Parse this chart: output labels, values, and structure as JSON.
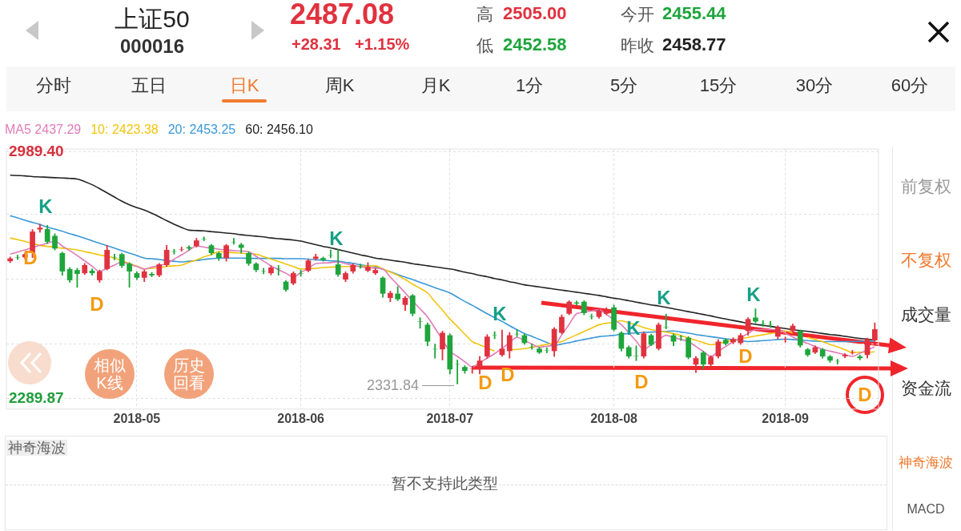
{
  "chart_data": {
    "type": "candlestick",
    "title": "上证50",
    "subtitle": "000016",
    "categories": [
      null,
      null,
      null,
      null,
      null,
      null,
      null,
      null,
      null,
      null,
      null,
      null,
      null,
      null,
      null,
      null,
      null,
      "2018-05",
      null,
      null,
      null,
      null,
      null,
      null,
      null,
      null,
      null,
      null,
      null,
      null,
      null,
      null,
      null,
      null,
      null,
      null,
      null,
      null,
      null,
      "2018-06",
      null,
      null,
      null,
      null,
      null,
      null,
      null,
      null,
      null,
      null,
      null,
      null,
      null,
      null,
      null,
      null,
      null,
      null,
      null,
      "2018-07",
      null,
      null,
      null,
      null,
      null,
      null,
      null,
      null,
      null,
      null,
      null,
      null,
      null,
      null,
      null,
      null,
      null,
      null,
      null,
      null,
      null,
      "2018-08",
      null,
      null,
      null,
      null,
      null,
      null,
      null,
      null,
      null,
      null,
      null,
      null,
      null,
      null,
      null,
      null,
      null,
      null,
      null,
      null,
      null,
      null,
      "2018-09",
      null,
      null,
      null,
      null,
      null,
      null,
      null,
      null,
      null,
      null,
      null,
      null
    ],
    "ohlc": [
      [
        2680,
        2692,
        2676,
        2688
      ],
      [
        2691,
        2697,
        2685,
        2690
      ],
      [
        2691,
        2704,
        2686,
        2700
      ],
      [
        2703,
        2770,
        2690,
        2764
      ],
      [
        2770,
        2785,
        2762,
        2775
      ],
      [
        2771,
        2782,
        2730,
        2735
      ],
      [
        2752,
        2758,
        2712,
        2716
      ],
      [
        2703,
        2706,
        2640,
        2651
      ],
      [
        2658,
        2662,
        2620,
        2626
      ],
      [
        2655,
        2660,
        2606,
        2644
      ],
      [
        2646,
        2674,
        2642,
        2669
      ],
      [
        2653,
        2658,
        2640,
        2646
      ],
      [
        2626,
        2655,
        2620,
        2651
      ],
      [
        2658,
        2725,
        2655,
        2712
      ],
      [
        2692,
        2700,
        2684,
        2691
      ],
      [
        2700,
        2703,
        2662,
        2667
      ],
      [
        2673,
        2676,
        2606,
        2651
      ],
      [
        2646,
        2650,
        2628,
        2633
      ],
      [
        2633,
        2655,
        2622,
        2651
      ],
      [
        2644,
        2648,
        2636,
        2640
      ],
      [
        2640,
        2674,
        2636,
        2671
      ],
      [
        2669,
        2725,
        2665,
        2712
      ],
      [
        2708,
        2714,
        2700,
        2707
      ],
      [
        2713,
        2720,
        2708,
        2714
      ],
      [
        2720,
        2724,
        2711,
        2716
      ],
      [
        2723,
        2745,
        2720,
        2739
      ],
      [
        2744,
        2749,
        2738,
        2743
      ],
      [
        2725,
        2728,
        2698,
        2703
      ],
      [
        2703,
        2706,
        2682,
        2689
      ],
      [
        2689,
        2728,
        2680,
        2725
      ],
      [
        2735,
        2745,
        2728,
        2734
      ],
      [
        2727,
        2731,
        2703,
        2718
      ],
      [
        2703,
        2707,
        2668,
        2673
      ],
      [
        2673,
        2676,
        2650,
        2655
      ],
      [
        2652,
        2660,
        2644,
        2651
      ],
      [
        2646,
        2667,
        2641,
        2662
      ],
      [
        2659,
        2668,
        2640,
        2658
      ],
      [
        2622,
        2625,
        2595,
        2599
      ],
      [
        2617,
        2650,
        2613,
        2646
      ],
      [
        2645,
        2655,
        2637,
        2644
      ],
      [
        2653,
        2686,
        2650,
        2682
      ],
      [
        2687,
        2700,
        2683,
        2693
      ],
      [
        2689,
        2692,
        2680,
        2684
      ],
      [
        2697,
        2712,
        2690,
        2696
      ],
      [
        2671,
        2714,
        2637,
        2642
      ],
      [
        2628,
        2650,
        2622,
        2646
      ],
      [
        2651,
        2673,
        2646,
        2669
      ],
      [
        2666,
        2672,
        2660,
        2665
      ],
      [
        2653,
        2676,
        2650,
        2664
      ],
      [
        2646,
        2660,
        2642,
        2655
      ],
      [
        2633,
        2636,
        2578,
        2588
      ],
      [
        2576,
        2595,
        2565,
        2590
      ],
      [
        2588,
        2608,
        2568,
        2572
      ],
      [
        2556,
        2580,
        2540,
        2576
      ],
      [
        2583,
        2586,
        2525,
        2531
      ],
      [
        2510,
        2520,
        2490,
        2509
      ],
      [
        2500,
        2505,
        2440,
        2452
      ],
      [
        2431,
        2445,
        2405,
        2430
      ],
      [
        2430,
        2482,
        2400,
        2477
      ],
      [
        2470,
        2474,
        2360,
        2373
      ],
      [
        2388,
        2400,
        2331.84,
        2387
      ],
      [
        2380,
        2384,
        2362,
        2369
      ],
      [
        2375,
        2382,
        2362,
        2376
      ],
      [
        2380,
        2410,
        2360,
        2398
      ],
      [
        2410,
        2472,
        2405,
        2466
      ],
      [
        2471,
        2480,
        2460,
        2470
      ],
      [
        2414,
        2485,
        2410,
        2432
      ],
      [
        2425,
        2478,
        2405,
        2470
      ],
      [
        2474,
        2485,
        2466,
        2473
      ],
      [
        2470,
        2474,
        2444,
        2448
      ],
      [
        2437,
        2445,
        2430,
        2436
      ],
      [
        2432,
        2436,
        2418,
        2421
      ],
      [
        2428,
        2435,
        2420,
        2427
      ],
      [
        2425,
        2492,
        2410,
        2488
      ],
      [
        2477,
        2528,
        2474,
        2522
      ],
      [
        2531,
        2568,
        2528,
        2565
      ],
      [
        2563,
        2567,
        2555,
        2560
      ],
      [
        2565,
        2568,
        2528,
        2533
      ],
      [
        2523,
        2530,
        2516,
        2522
      ],
      [
        2522,
        2545,
        2518,
        2538
      ],
      [
        2531,
        2548,
        2528,
        2536
      ],
      [
        2549,
        2556,
        2482,
        2486
      ],
      [
        2477,
        2480,
        2425,
        2432
      ],
      [
        2436,
        2440,
        2405,
        2410
      ],
      [
        2411,
        2440,
        2398,
        2410
      ],
      [
        2410,
        2480,
        2405,
        2475
      ],
      [
        2470,
        2473,
        2440,
        2443
      ],
      [
        2432,
        2505,
        2428,
        2500
      ],
      [
        2494,
        2530,
        2488,
        2493
      ],
      [
        2470,
        2474,
        2440,
        2452
      ],
      [
        2466,
        2470,
        2455,
        2465
      ],
      [
        2463,
        2466,
        2403,
        2407
      ],
      [
        2387,
        2410,
        2364,
        2405
      ],
      [
        2421,
        2425,
        2375,
        2387
      ],
      [
        2387,
        2412,
        2378,
        2409
      ],
      [
        2410,
        2458,
        2405,
        2452
      ],
      [
        2457,
        2460,
        2442,
        2446
      ],
      [
        2450,
        2463,
        2446,
        2459
      ],
      [
        2448,
        2475,
        2444,
        2470
      ],
      [
        2482,
        2520,
        2470,
        2516
      ],
      [
        2520,
        2545,
        2505,
        2509
      ],
      [
        2503,
        2512,
        2495,
        2502
      ],
      [
        2501,
        2510,
        2492,
        2500
      ],
      [
        2466,
        2497,
        2460,
        2493
      ],
      [
        2459,
        2465,
        2450,
        2460
      ],
      [
        2482,
        2502,
        2478,
        2497
      ],
      [
        2482,
        2485,
        2436,
        2441
      ],
      [
        2430,
        2433,
        2410,
        2414
      ],
      [
        2421,
        2440,
        2418,
        2436
      ],
      [
        2430,
        2433,
        2405,
        2410
      ],
      [
        2410,
        2413,
        2393,
        2398
      ],
      [
        2397,
        2402,
        2388,
        2396
      ],
      [
        2410,
        2418,
        2406,
        2414
      ],
      [
        2420,
        2427,
        2416,
        2421
      ],
      [
        2410,
        2414,
        2400,
        2405
      ],
      [
        2414,
        2462,
        2405,
        2458.77
      ],
      [
        2455.44,
        2505.0,
        2452.58,
        2487.08
      ]
    ],
    "series": [
      {
        "type": "line",
        "name": "MA5 2437.29",
        "color": "#e07bb8",
        "values": [
          2700,
          2706,
          2712,
          2719,
          2725,
          2731,
          2737,
          2723,
          2710,
          2696,
          2681,
          2666,
          2651,
          2660,
          2669,
          2678,
          2671,
          2665,
          2658,
          2663,
          2668,
          2673,
          2686,
          2698,
          2711,
          2723,
          2720,
          2717,
          2714,
          2712,
          2710,
          2709,
          2707,
          2694,
          2680,
          2667,
          2656,
          2646,
          2635,
          2648,
          2660,
          2673,
          2675,
          2676,
          2678,
          2673,
          2669,
          2664,
          2662,
          2660,
          2658,
          2635,
          2613,
          2590,
          2567,
          2545,
          2522,
          2490,
          2457,
          2425,
          2410,
          2395,
          2380,
          2393,
          2405,
          2418,
          2433,
          2449,
          2464,
          2455,
          2445,
          2436,
          2439,
          2441,
          2471,
          2501,
          2531,
          2535,
          2539,
          2543,
          2529,
          2514,
          2500,
          2477,
          2453,
          2430,
          2443,
          2457,
          2470,
          2464,
          2458,
          2452,
          2438,
          2424,
          2410,
          2424,
          2438,
          2452,
          2463,
          2475,
          2486,
          2486,
          2486,
          2486,
          2476,
          2465,
          2455,
          2447,
          2438,
          2430,
          2425,
          2420,
          2415,
          2410,
          2419,
          2428,
          2437
        ]
      },
      {
        "type": "line",
        "name": "10: 2423.38",
        "color": "#f2c40c",
        "values": [
          2746,
          2741,
          2736,
          2730,
          2725,
          2722,
          2720,
          2717,
          2715,
          2712,
          2707,
          2703,
          2698,
          2694,
          2689,
          2681,
          2674,
          2666,
          2658,
          2660,
          2662,
          2665,
          2667,
          2669,
          2677,
          2684,
          2692,
          2699,
          2707,
          2706,
          2704,
          2703,
          2701,
          2700,
          2693,
          2686,
          2679,
          2672,
          2665,
          2658,
          2659,
          2660,
          2662,
          2663,
          2664,
          2665,
          2665,
          2666,
          2666,
          2667,
          2658,
          2649,
          2640,
          2628,
          2615,
          2603,
          2590,
          2565,
          2541,
          2516,
          2495,
          2473,
          2452,
          2443,
          2434,
          2425,
          null,
          2429,
          2430,
          2432,
          2436,
          2440,
          2444,
          2448,
          2452,
          2462,
          2471,
          2481,
          2490,
          2500,
          2504,
          2507,
          2511,
          2505,
          2499,
          2492,
          2486,
          2482,
          2479,
          2475,
          2469,
          2462,
          2456,
          2449,
          2443,
          2447,
          2451,
          2456,
          2460,
          2464,
          2468,
          2471,
          2475,
          2478,
          2482,
          2476,
          null,
          2464,
          2458,
          2452,
          2444,
          2437,
          2429,
          2421,
          2422,
          2422,
          2423
        ]
      },
      {
        "type": "line",
        "name": "20: 2453.25",
        "color": "#3a98d8",
        "values": [
          2809,
          2803,
          2796,
          2790,
          2784,
          2777,
          2771,
          2765,
          2758,
          2752,
          2745,
          2738,
          2731,
          2724,
          2717,
          2710,
          2703,
          2696,
          2689,
          2687,
          2685,
          2682,
          2680,
          2678,
          2680,
          2682,
          2685,
          2687,
          2689,
          2689,
          2689,
          2689,
          2688,
          2688,
          2688,
          2688,
          2688,
          2687,
          2687,
          2687,
          2686,
          2684,
          2683,
          2681,
          2680,
          2677,
          2674,
          2670,
          2667,
          2664,
          2657,
          2650,
          2642,
          2635,
          2628,
          2620,
          2613,
          2605,
          2598,
          2590,
          2578,
          2566,
          2555,
          2543,
          2531,
          2520,
          2509,
          2497,
          2486,
          2475,
          2467,
          2458,
          2450,
          2441,
          2445,
          2449,
          2454,
          2458,
          2462,
          2466,
          2468,
          2470,
          2473,
          2475,
          2477,
          2478,
          2479,
          2480,
          2481,
          2482,
          2479,
          2476,
          2472,
          2469,
          2466,
          2463,
          2460,
          2458,
          2455,
          2452,
          2453,
          2455,
          2456,
          2458,
          2459,
          2458,
          2456,
          2455,
          2453,
          2452,
          2452,
          2452,
          2452,
          2452,
          2453,
          2453,
          2453
        ]
      },
      {
        "type": "line",
        "name": "60: 2456.10",
        "color": "#222222",
        "values": [
          2924,
          2923,
          2922,
          2920,
          2919,
          2918,
          2917,
          2916,
          2915,
          2913,
          2906,
          2897,
          2886,
          2874,
          2862,
          2850,
          2840,
          2832,
          2825,
          2816,
          2806,
          2795,
          2785,
          2776,
          2768,
          2767,
          2766,
          2764,
          2762,
          2760,
          2758,
          2755,
          2753,
          2751,
          2749,
          2746,
          2744,
          2742,
          2740,
          2737,
          2732,
          2727,
          2722,
          2718,
          2713,
          2708,
          2703,
          2698,
          2694,
          2689,
          2686,
          2683,
          2680,
          2677,
          2673,
          2670,
          2667,
          2664,
          2661,
          2658,
          2654,
          2649,
          2645,
          2640,
          2636,
          2631,
          2627,
          2622,
          2618,
          2613,
          2610,
          2607,
          2604,
          2601,
          2598,
          2595,
          2592,
          2589,
          2586,
          2583,
          2579,
          2575,
          2572,
          2568,
          2564,
          2560,
          2556,
          2553,
          2549,
          2545,
          2541,
          2537,
          2533,
          2529,
          2525,
          2520,
          2516,
          2512,
          2508,
          2504,
          2501,
          2498,
          2495,
          2492,
          2489,
          2486,
          2483,
          2481,
          2478,
          2475,
          2472,
          2470,
          2467,
          2464,
          2461,
          2459,
          2456
        ]
      }
    ],
    "ylim": [
      2260.5,
      2998.4
    ],
    "yticks": [
      2289.87,
      {
        "value": 2444.97,
        "label": null
      },
      {
        "value": 2629.45,
        "label": null
      },
      {
        "value": 2813.9,
        "label": null
      },
      {
        "value": 2989.4,
        "label": "2989.40"
      }
    ],
    "grid": true,
    "legend": "top left",
    "annotations": [
      "2487.08",
      "+28.31",
      "+1.15%",
      "高",
      "2505.00",
      "低",
      "2452.58",
      "今开",
      "2455.44",
      "昨收",
      "2458.77",
      "分时",
      "五日",
      "日K",
      "周K",
      "月K",
      "1分",
      "5分",
      "15分",
      "30分",
      "60分",
      "前复权",
      "不复权",
      "成交量",
      "资金流",
      "神奇海波",
      "MACD",
      "相似K线",
      "历史回看",
      "神奇海波",
      "暂不支持此类型",
      "K",
      "D",
      "D",
      "K",
      "2331.84",
      "D",
      "K",
      "D",
      "K",
      "D",
      "K",
      "D",
      "K",
      "D"
    ]
  }
}
